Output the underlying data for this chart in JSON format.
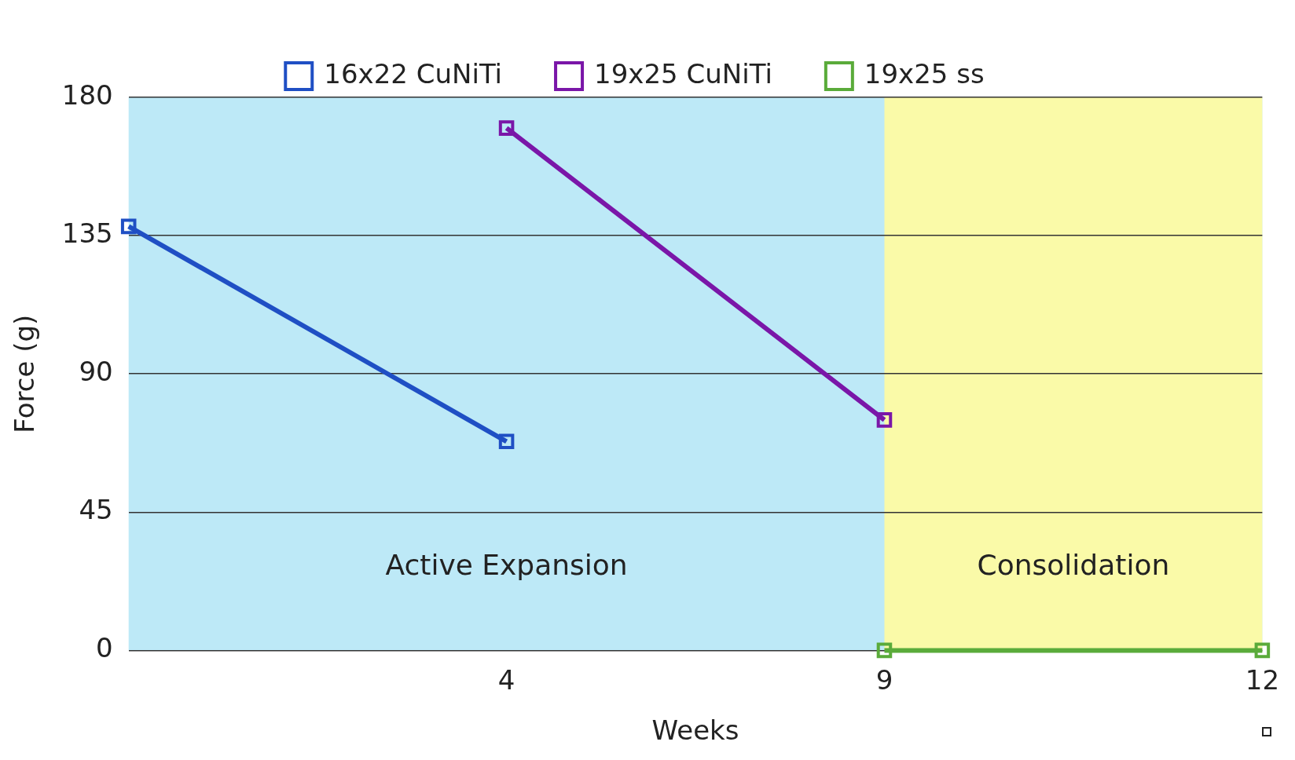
{
  "chart_data": {
    "type": "line",
    "xlabel": "Weeks",
    "ylabel": "Force (g)",
    "categories": [
      null,
      "4",
      "9",
      "12"
    ],
    "series": [
      {
        "name": "16x22 CuNiTi",
        "color": "#1f4fc4",
        "values": [
          138,
          68,
          null,
          null
        ]
      },
      {
        "name": "19x25 CuNiTi",
        "color": "#7a16a8",
        "values": [
          null,
          170,
          75,
          null
        ]
      },
      {
        "name": "19x25 ss",
        "color": "#5aab3a",
        "values": [
          null,
          null,
          0,
          0
        ]
      }
    ],
    "ylim": [
      0,
      180
    ],
    "yticks": [
      0,
      45,
      90,
      135,
      180
    ],
    "bands": [
      {
        "axis": "y",
        "from": 0,
        "to": 180,
        "label": "Active Expansion",
        "color": "#bde9f7"
      },
      {
        "axis": "x",
        "from": "9",
        "to": "12",
        "label": "Consolidation",
        "color": "#fafaa8"
      }
    ],
    "grid": "y",
    "legend": "top",
    "marker": "square",
    "line_style": "solid"
  }
}
